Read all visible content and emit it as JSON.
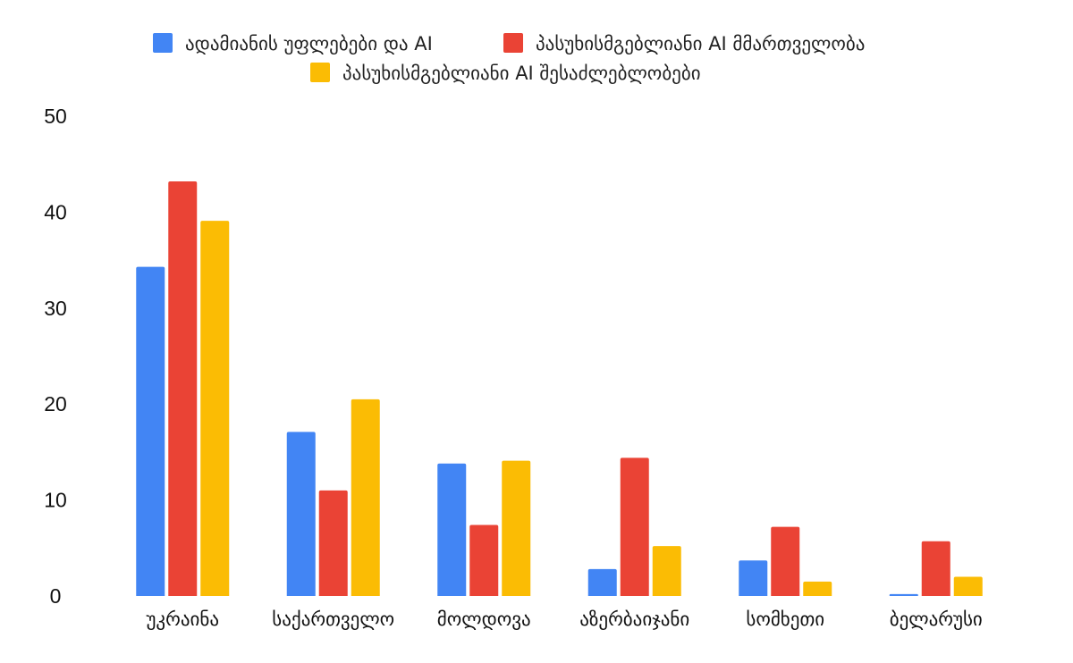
{
  "chart_data": {
    "type": "bar",
    "categories": [
      "უკრაინა",
      "საქართველო",
      "მოლდოვა",
      "აზერბაიჯანი",
      "სომხეთი",
      "ბელარუსი"
    ],
    "series": [
      {
        "name": "ადამიანის უფლებები და AI",
        "color": "#4285F4",
        "values": [
          34.3,
          17.1,
          13.8,
          2.8,
          3.7,
          0.2
        ]
      },
      {
        "name": "პასუხისმგებლიანი AI მმართველობა",
        "color": "#EA4335",
        "values": [
          43.2,
          11.0,
          7.4,
          14.4,
          7.2,
          5.7
        ]
      },
      {
        "name": "პასუხისმგებლიანი AI შესაძლებლობები",
        "color": "#FBBC04",
        "values": [
          39.1,
          20.5,
          14.1,
          5.2,
          1.5,
          2.0
        ]
      }
    ],
    "ylim": [
      0,
      50
    ],
    "yticks": [
      "0",
      "10",
      "20",
      "30",
      "40",
      "50"
    ],
    "legend_position": "top-center",
    "grid": false
  }
}
